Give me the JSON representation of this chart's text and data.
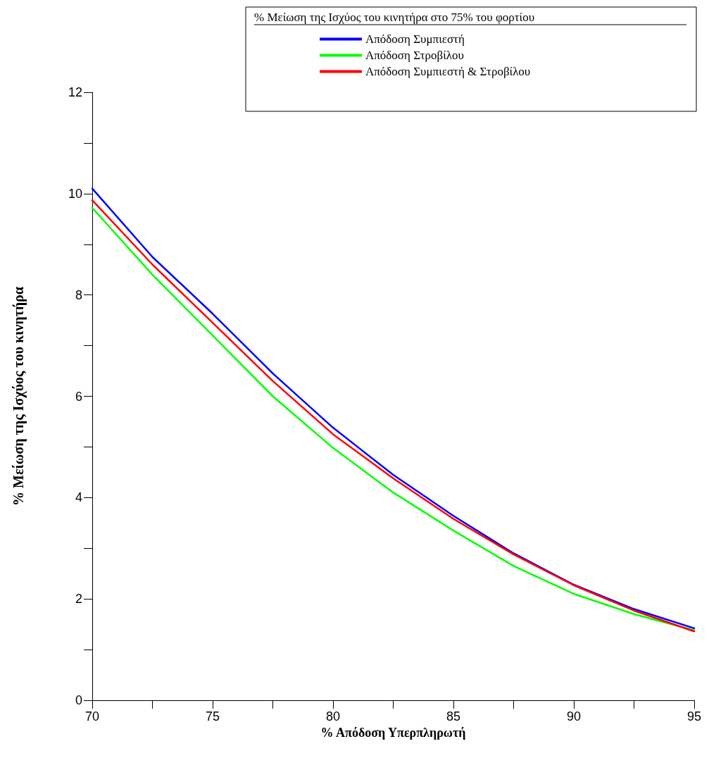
{
  "chart_data": {
    "type": "line",
    "xlabel": "% Απόδοση Υπερπληρωτή",
    "ylabel": "% Μείωση της Ισχύος του κινητήρα",
    "legend_title": "% Μείωση της Ισχύος του κινητήρα στο 75% του φορτίου",
    "x": [
      70,
      72.5,
      75,
      77.5,
      80,
      82.5,
      85,
      87.5,
      90,
      92.5,
      95
    ],
    "series": [
      {
        "name": "Απόδοση Συμπιεστή",
        "color": "#0000ff",
        "values": [
          10.1,
          8.75,
          7.63,
          6.45,
          5.38,
          4.45,
          3.64,
          2.9,
          2.28,
          1.8,
          1.42
        ]
      },
      {
        "name": "Απόδοση Στροβίλου",
        "color": "#00ff00",
        "values": [
          9.72,
          8.4,
          7.2,
          6.0,
          4.98,
          4.1,
          3.35,
          2.65,
          2.1,
          1.7,
          1.38
        ]
      },
      {
        "name": "Απόδοση Συμπιεστή & Στροβίλου",
        "color": "#ff0000",
        "values": [
          9.87,
          8.6,
          7.45,
          6.3,
          5.25,
          4.38,
          3.58,
          2.88,
          2.27,
          1.77,
          1.36
        ]
      }
    ],
    "xlim": [
      70,
      95
    ],
    "xticks": [
      70,
      {
        "value": 72.5,
        "label": null
      },
      75,
      {
        "value": 77.5,
        "label": null
      },
      80,
      {
        "value": 82.5,
        "label": null
      },
      85,
      {
        "value": 87.5,
        "label": null
      },
      90,
      {
        "value": 92.5,
        "label": null
      },
      95
    ],
    "ylim": [
      0,
      12
    ],
    "yticks": [
      0,
      {
        "value": 1,
        "label": null
      },
      2,
      {
        "value": 3,
        "label": null
      },
      4,
      {
        "value": 5,
        "label": null
      },
      6,
      {
        "value": 7,
        "label": null
      },
      8,
      {
        "value": 9,
        "label": null
      },
      10,
      {
        "value": 11,
        "label": null
      },
      12
    ],
    "grid": false,
    "legend": "top right",
    "marker": "none",
    "line_style": "solid"
  }
}
